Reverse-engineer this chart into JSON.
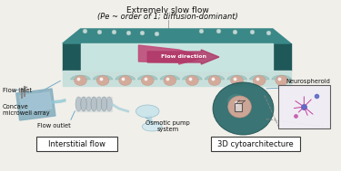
{
  "title_line1": "Extremely slow flow",
  "title_line2": "(Pe ~ order of 1; diffusion-dominant)",
  "label_flow_direction": "Flow direction",
  "label_neurospheroid": "Neurospheroid",
  "label_flow_inlet": "Flow inlet",
  "label_concave": "Concave\nmicrowell array",
  "label_flow_outlet": "Flow outlet",
  "label_osmotic": "Osmotic pump\nsystem",
  "label_interstitial": "Interstitial flow",
  "label_3d": "3D cytoarchitecture",
  "bg_color": "#f0efea",
  "chip_top_color": "#3a8888",
  "chip_wall_color": "#2a6868",
  "chip_floor_color": "#c8e0dc",
  "channel_color": "#d0e8e4",
  "arrow_color": "#b04870",
  "sphere_color": "#d4a898",
  "sphere_edge_color": "#c09080",
  "well_color": "#a8ccc8",
  "teal_dark": "#2a6868",
  "board_color": "#90b8c8",
  "coil_color": "#b0b8c0",
  "pump_color": "#c0dce8",
  "big_sphere_color": "#2a7070",
  "zoom_box_color": "#f0e8f2",
  "neuron_pink": "#c040a0",
  "neuron_blue": "#4060c0"
}
